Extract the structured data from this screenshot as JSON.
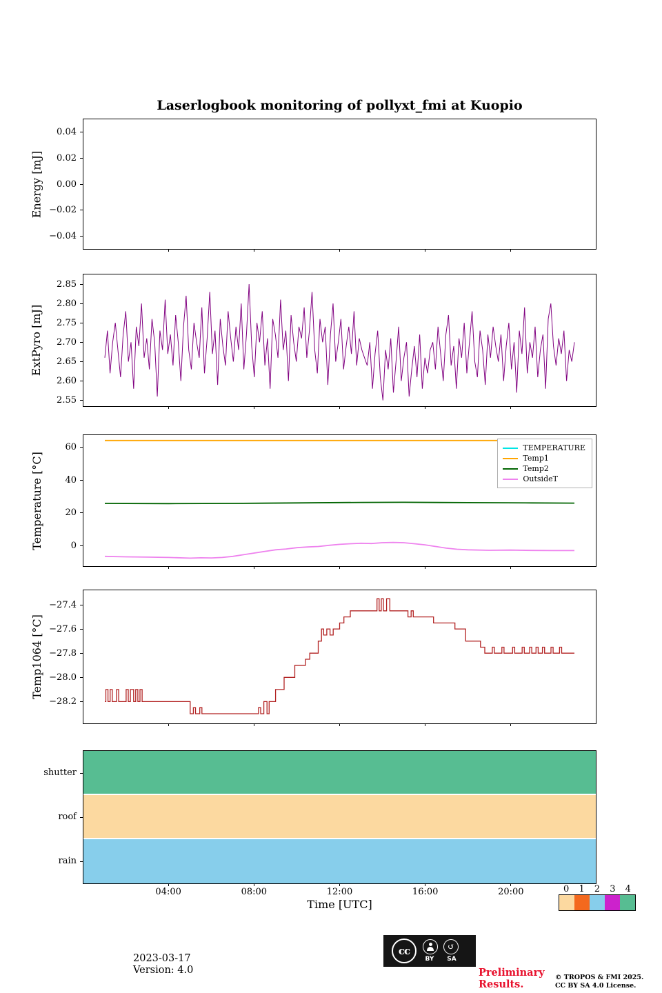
{
  "title": "Laserlogbook monitoring of pollyxt_fmi at Kuopio",
  "axis": {
    "xlabel": "Time [UTC]",
    "xlim": [
      0,
      24
    ],
    "xticks": [
      {
        "v": 4,
        "label": "04:00"
      },
      {
        "v": 8,
        "label": "08:00"
      },
      {
        "v": 12,
        "label": "12:00"
      },
      {
        "v": 16,
        "label": "16:00"
      },
      {
        "v": 20,
        "label": "20:00"
      }
    ]
  },
  "chart_data": [
    {
      "id": "energy",
      "type": "line",
      "ylabel": "Energy [mJ]",
      "ylim": [
        -0.05,
        0.05
      ],
      "yticks": [
        {
          "v": 0.04,
          "label": "0.04"
        },
        {
          "v": 0.02,
          "label": "0.02"
        },
        {
          "v": 0.0,
          "label": "0.00"
        },
        {
          "v": -0.02,
          "label": "−0.02"
        },
        {
          "v": -0.04,
          "label": "−0.04"
        }
      ],
      "series": []
    },
    {
      "id": "extpyro",
      "type": "line",
      "ylabel": "ExtPyro [mJ]",
      "ylim": [
        2.535,
        2.875
      ],
      "yticks": [
        {
          "v": 2.85,
          "label": "2.85"
        },
        {
          "v": 2.8,
          "label": "2.80"
        },
        {
          "v": 2.75,
          "label": "2.75"
        },
        {
          "v": 2.7,
          "label": "2.70"
        },
        {
          "v": 2.65,
          "label": "2.65"
        },
        {
          "v": 2.6,
          "label": "2.60"
        },
        {
          "v": 2.55,
          "label": "2.55"
        }
      ],
      "series": [
        {
          "name": "ExtPyro",
          "color": "#800080",
          "width": 1,
          "x_start": 1,
          "x_end": 23,
          "values": [
            2.66,
            2.73,
            2.62,
            2.7,
            2.75,
            2.68,
            2.61,
            2.72,
            2.78,
            2.65,
            2.7,
            2.58,
            2.74,
            2.69,
            2.8,
            2.66,
            2.71,
            2.63,
            2.76,
            2.7,
            2.56,
            2.73,
            2.68,
            2.81,
            2.67,
            2.72,
            2.64,
            2.77,
            2.7,
            2.6,
            2.74,
            2.82,
            2.68,
            2.63,
            2.75,
            2.7,
            2.66,
            2.79,
            2.62,
            2.71,
            2.83,
            2.67,
            2.73,
            2.59,
            2.76,
            2.69,
            2.64,
            2.78,
            2.71,
            2.65,
            2.74,
            2.68,
            2.8,
            2.63,
            2.72,
            2.85,
            2.69,
            2.61,
            2.75,
            2.7,
            2.78,
            2.64,
            2.71,
            2.58,
            2.76,
            2.72,
            2.66,
            2.81,
            2.68,
            2.73,
            2.6,
            2.77,
            2.7,
            2.65,
            2.74,
            2.71,
            2.79,
            2.66,
            2.73,
            2.83,
            2.68,
            2.62,
            2.76,
            2.7,
            2.74,
            2.59,
            2.72,
            2.8,
            2.65,
            2.7,
            2.76,
            2.63,
            2.69,
            2.74,
            2.67,
            2.78,
            2.64,
            2.71,
            2.68,
            2.66,
            2.64,
            2.7,
            2.58,
            2.67,
            2.73,
            2.61,
            2.55,
            2.68,
            2.63,
            2.71,
            2.57,
            2.65,
            2.74,
            2.6,
            2.66,
            2.7,
            2.56,
            2.63,
            2.69,
            2.61,
            2.72,
            2.58,
            2.66,
            2.62,
            2.68,
            2.7,
            2.63,
            2.74,
            2.67,
            2.6,
            2.72,
            2.77,
            2.64,
            2.69,
            2.58,
            2.71,
            2.66,
            2.75,
            2.62,
            2.7,
            2.78,
            2.65,
            2.61,
            2.73,
            2.68,
            2.59,
            2.72,
            2.66,
            2.74,
            2.69,
            2.65,
            2.72,
            2.6,
            2.69,
            2.75,
            2.63,
            2.7,
            2.57,
            2.73,
            2.67,
            2.79,
            2.62,
            2.7,
            2.66,
            2.74,
            2.61,
            2.68,
            2.72,
            2.58,
            2.76,
            2.8,
            2.69,
            2.64,
            2.71,
            2.67,
            2.73,
            2.6,
            2.68,
            2.65,
            2.7
          ]
        }
      ]
    },
    {
      "id": "temperature",
      "type": "line",
      "ylabel": "Temperature [°C]",
      "ylim": [
        -12.5,
        67.5
      ],
      "yticks": [
        {
          "v": 60,
          "label": "60"
        },
        {
          "v": 40,
          "label": "40"
        },
        {
          "v": 20,
          "label": "20"
        },
        {
          "v": 0,
          "label": "0"
        }
      ],
      "legend": [
        {
          "label": "TEMPERATURE",
          "color": "#00e5e5"
        },
        {
          "label": "Temp1",
          "color": "#ffa500"
        },
        {
          "label": "Temp2",
          "color": "#006400"
        },
        {
          "label": "OutsideT",
          "color": "#ee82ee"
        }
      ],
      "series": [
        {
          "name": "TEMPERATURE",
          "color": "#00e5e5",
          "width": 1.5,
          "points": []
        },
        {
          "name": "Temp1",
          "color": "#ffa500",
          "width": 1.8,
          "points": [
            [
              1,
              64.2
            ],
            [
              23,
              64.2
            ]
          ]
        },
        {
          "name": "Temp2",
          "color": "#006400",
          "width": 1.8,
          "points": [
            [
              1,
              25.8
            ],
            [
              4,
              25.7
            ],
            [
              7,
              25.8
            ],
            [
              10,
              26.1
            ],
            [
              13,
              26.4
            ],
            [
              15,
              26.5
            ],
            [
              18,
              26.3
            ],
            [
              21,
              26.1
            ],
            [
              23,
              26.0
            ]
          ]
        },
        {
          "name": "OutsideT",
          "color": "#ee82ee",
          "width": 1.8,
          "points": [
            [
              1,
              -6.5
            ],
            [
              2,
              -6.8
            ],
            [
              3,
              -7.0
            ],
            [
              4,
              -7.2
            ],
            [
              5,
              -7.6
            ],
            [
              5.5,
              -7.4
            ],
            [
              6,
              -7.5
            ],
            [
              6.5,
              -7.2
            ],
            [
              7,
              -6.5
            ],
            [
              7.5,
              -5.5
            ],
            [
              8,
              -4.5
            ],
            [
              8.5,
              -3.5
            ],
            [
              9,
              -2.5
            ],
            [
              9.5,
              -2.0
            ],
            [
              10,
              -1.2
            ],
            [
              10.5,
              -0.8
            ],
            [
              11,
              -0.5
            ],
            [
              11.5,
              0.2
            ],
            [
              12,
              0.8
            ],
            [
              12.5,
              1.2
            ],
            [
              13,
              1.5
            ],
            [
              13.5,
              1.3
            ],
            [
              14,
              1.8
            ],
            [
              14.5,
              2.0
            ],
            [
              15,
              1.8
            ],
            [
              15.5,
              1.2
            ],
            [
              16,
              0.5
            ],
            [
              16.5,
              -0.5
            ],
            [
              17,
              -1.5
            ],
            [
              17.5,
              -2.2
            ],
            [
              18,
              -2.5
            ],
            [
              19,
              -2.8
            ],
            [
              20,
              -2.7
            ],
            [
              21,
              -2.9
            ],
            [
              22,
              -3.0
            ],
            [
              23,
              -3.0
            ]
          ]
        }
      ]
    },
    {
      "id": "temp1064",
      "type": "step",
      "ylabel": "Temp1064 [°C]",
      "ylim": [
        -28.38,
        -27.28
      ],
      "yticks": [
        {
          "v": -27.4,
          "label": "−27.4"
        },
        {
          "v": -27.6,
          "label": "−27.6"
        },
        {
          "v": -27.8,
          "label": "−27.8"
        },
        {
          "v": -28.0,
          "label": "−28.0"
        },
        {
          "v": -28.2,
          "label": "−28.2"
        }
      ],
      "series": [
        {
          "name": "Temp1064",
          "color": "#b22222",
          "width": 1.3,
          "points": [
            [
              1.0,
              -28.2
            ],
            [
              1.05,
              -28.1
            ],
            [
              1.15,
              -28.2
            ],
            [
              1.25,
              -28.1
            ],
            [
              1.35,
              -28.2
            ],
            [
              1.55,
              -28.1
            ],
            [
              1.65,
              -28.2
            ],
            [
              2.0,
              -28.1
            ],
            [
              2.1,
              -28.2
            ],
            [
              2.2,
              -28.1
            ],
            [
              2.35,
              -28.2
            ],
            [
              2.45,
              -28.1
            ],
            [
              2.55,
              -28.2
            ],
            [
              2.65,
              -28.1
            ],
            [
              2.75,
              -28.2
            ],
            [
              4.9,
              -28.2
            ],
            [
              5.0,
              -28.3
            ],
            [
              5.15,
              -28.25
            ],
            [
              5.25,
              -28.3
            ],
            [
              5.45,
              -28.25
            ],
            [
              5.55,
              -28.3
            ],
            [
              8.2,
              -28.25
            ],
            [
              8.3,
              -28.3
            ],
            [
              8.45,
              -28.2
            ],
            [
              8.6,
              -28.3
            ],
            [
              8.7,
              -28.2
            ],
            [
              9.0,
              -28.1
            ],
            [
              9.4,
              -28.0
            ],
            [
              9.9,
              -27.9
            ],
            [
              10.4,
              -27.85
            ],
            [
              10.6,
              -27.8
            ],
            [
              11.0,
              -27.7
            ],
            [
              11.15,
              -27.6
            ],
            [
              11.25,
              -27.65
            ],
            [
              11.4,
              -27.6
            ],
            [
              11.55,
              -27.65
            ],
            [
              11.7,
              -27.6
            ],
            [
              12.0,
              -27.55
            ],
            [
              12.2,
              -27.5
            ],
            [
              12.5,
              -27.45
            ],
            [
              13.4,
              -27.45
            ],
            [
              13.75,
              -27.35
            ],
            [
              13.85,
              -27.45
            ],
            [
              13.95,
              -27.35
            ],
            [
              14.05,
              -27.45
            ],
            [
              14.2,
              -27.35
            ],
            [
              14.35,
              -27.45
            ],
            [
              15.2,
              -27.5
            ],
            [
              15.35,
              -27.45
            ],
            [
              15.45,
              -27.5
            ],
            [
              16.4,
              -27.55
            ],
            [
              17.4,
              -27.6
            ],
            [
              17.9,
              -27.7
            ],
            [
              18.6,
              -27.75
            ],
            [
              18.8,
              -27.8
            ],
            [
              19.15,
              -27.75
            ],
            [
              19.25,
              -27.8
            ],
            [
              19.6,
              -27.75
            ],
            [
              19.7,
              -27.8
            ],
            [
              20.1,
              -27.75
            ],
            [
              20.2,
              -27.8
            ],
            [
              20.55,
              -27.75
            ],
            [
              20.65,
              -27.8
            ],
            [
              20.9,
              -27.75
            ],
            [
              21.0,
              -27.8
            ],
            [
              21.2,
              -27.75
            ],
            [
              21.3,
              -27.8
            ],
            [
              21.5,
              -27.75
            ],
            [
              21.6,
              -27.8
            ],
            [
              21.9,
              -27.75
            ],
            [
              22.0,
              -27.8
            ],
            [
              22.3,
              -27.75
            ],
            [
              22.4,
              -27.8
            ],
            [
              23.0,
              -27.8
            ]
          ]
        }
      ]
    },
    {
      "id": "status",
      "type": "bands",
      "rows": [
        {
          "label": "shutter",
          "value": 4,
          "color": "#57bd92"
        },
        {
          "label": "roof",
          "value": 0,
          "color": "#fcd9a0"
        },
        {
          "label": "rain",
          "value": 2,
          "color": "#87ceeb"
        }
      ]
    }
  ],
  "colorbar": {
    "labels": [
      "0",
      "1",
      "2",
      "3",
      "4"
    ],
    "colors": [
      "#fcd9a0",
      "#f4691e",
      "#87ceeb",
      "#cc22cc",
      "#57bd92"
    ]
  },
  "footer": {
    "date": "2023-03-17",
    "version": "Version: 4.0",
    "badge": {
      "cc": "cc",
      "by": "BY",
      "sa": "SA"
    },
    "preliminary_line1": "Preliminary",
    "preliminary_line2": "Results.",
    "preliminary_color": "#e8112d",
    "copyright_line1": "© TROPOS & FMI 2025.",
    "copyright_line2": "CC BY SA 4.0 License."
  }
}
